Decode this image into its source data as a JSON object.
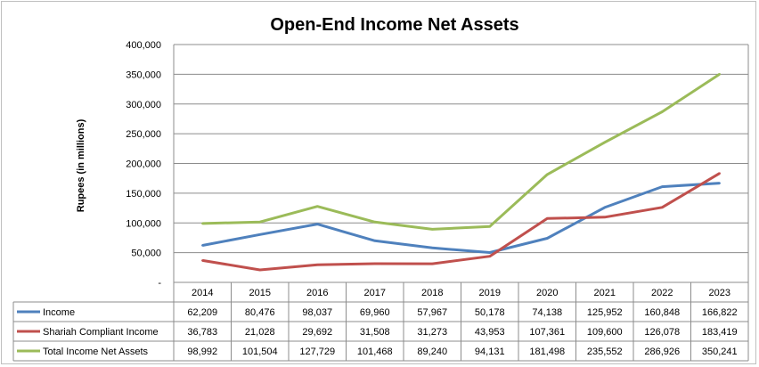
{
  "chart_data": {
    "type": "line",
    "title": "Open-End Income Net Assets",
    "ylabel": "Rupees (in millions)",
    "xlabel": "",
    "ylim": [
      0,
      400000
    ],
    "yticks": [
      "-",
      "50,000",
      "100,000",
      "150,000",
      "200,000",
      "250,000",
      "300,000",
      "350,000",
      "400,000"
    ],
    "grid": true,
    "legend": "data-table-left",
    "categories": [
      "2014",
      "2015",
      "2016",
      "2017",
      "2018",
      "2019",
      "2020",
      "2021",
      "2022",
      "2023"
    ],
    "series": [
      {
        "name": "Income",
        "color": "#4f81bd",
        "values": [
          62209,
          80476,
          98037,
          69960,
          57967,
          50178,
          74138,
          125952,
          160848,
          166822
        ],
        "labels": [
          "62,209",
          "80,476",
          "98,037",
          "69,960",
          "57,967",
          "50,178",
          "74,138",
          "125,952",
          "160,848",
          "166,822"
        ]
      },
      {
        "name": "Shariah Compliant Income",
        "color": "#c0504d",
        "values": [
          36783,
          21028,
          29692,
          31508,
          31273,
          43953,
          107361,
          109600,
          126078,
          183419
        ],
        "labels": [
          "36,783",
          "21,028",
          "29,692",
          "31,508",
          "31,273",
          "43,953",
          "107,361",
          "109,600",
          "126,078",
          "183,419"
        ]
      },
      {
        "name": "Total Income Net Assets",
        "color": "#9bbb59",
        "values": [
          98992,
          101504,
          127729,
          101468,
          89240,
          94131,
          181498,
          235552,
          286926,
          350241
        ],
        "labels": [
          "98,992",
          "101,504",
          "127,729",
          "101,468",
          "89,240",
          "94,131",
          "181,498",
          "235,552",
          "286,926",
          "350,241"
        ]
      }
    ]
  }
}
